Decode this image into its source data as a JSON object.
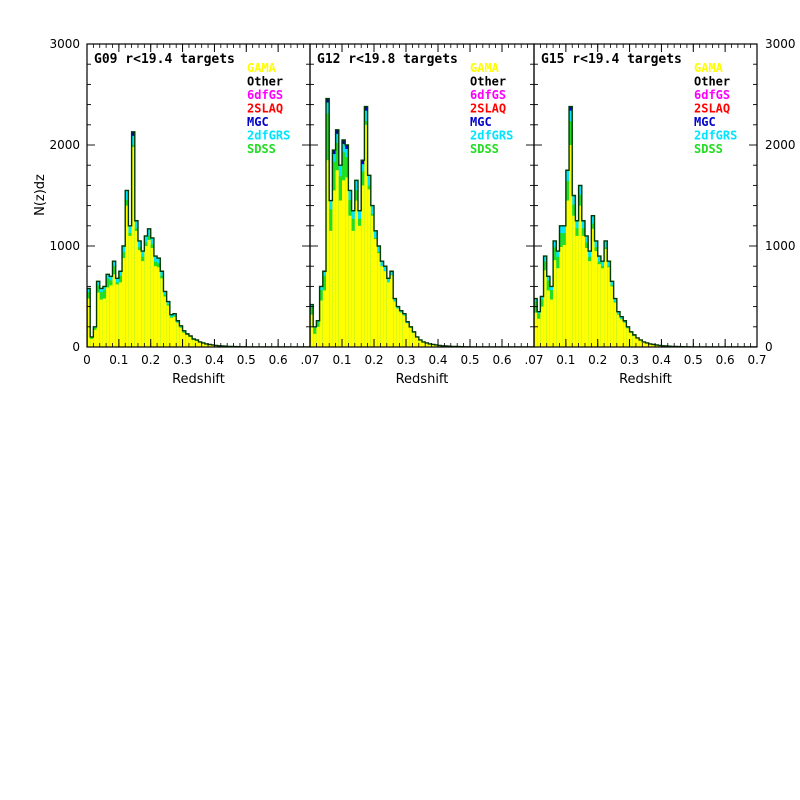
{
  "chart_data": {
    "type": "bar",
    "ylabel": "N(z)dz",
    "xlabel": "Redshift",
    "ylim": [
      0,
      3000
    ],
    "xlim": [
      0,
      0.7
    ],
    "yticks": [
      "0",
      "1000",
      "2000",
      "3000"
    ],
    "xticks": [
      [
        "0",
        "0.1",
        "0.2",
        "0.3",
        "0.4",
        "0.5",
        "0.6"
      ],
      [
        ".07",
        "0.1",
        "0.2",
        "0.3",
        "0.4",
        "0.5",
        "0.6"
      ],
      [
        ".07",
        "0.1",
        "0.2",
        "0.3",
        "0.4",
        "0.5",
        "0.6",
        "0.7"
      ]
    ],
    "tick_values": [
      [
        0,
        0.1,
        0.2,
        0.3,
        0.4,
        0.5,
        0.6
      ],
      [
        0.0,
        0.1,
        0.2,
        0.3,
        0.4,
        0.5,
        0.6
      ],
      [
        0.0,
        0.1,
        0.2,
        0.3,
        0.4,
        0.5,
        0.6,
        0.7
      ]
    ],
    "bin_width": 0.01,
    "legend": [
      {
        "name": "GAMA",
        "color": "#ffff00"
      },
      {
        "name": "Other",
        "color": "#000000"
      },
      {
        "name": "6dfGS",
        "color": "#ff00ff"
      },
      {
        "name": "2SLAQ",
        "color": "#ff0000"
      },
      {
        "name": "MGC",
        "color": "#0000cc"
      },
      {
        "name": "2dfGRS",
        "color": "#00e5ff"
      },
      {
        "name": "SDSS",
        "color": "#22dd22"
      }
    ],
    "panels": [
      {
        "title": "G09 r<19.4 targets",
        "total": [
          580,
          100,
          200,
          650,
          580,
          600,
          720,
          700,
          850,
          680,
          750,
          1000,
          1550,
          1200,
          2130,
          1250,
          1050,
          950,
          1100,
          1170,
          1080,
          900,
          880,
          750,
          550,
          450,
          320,
          330,
          260,
          210,
          160,
          130,
          110,
          80,
          70,
          50,
          40,
          30,
          25,
          20,
          15,
          12,
          10,
          8,
          6,
          5,
          4,
          3,
          2,
          2,
          1,
          1,
          1,
          1,
          0,
          0,
          0,
          0,
          0,
          0,
          0,
          0,
          0,
          0,
          0,
          0,
          0,
          0,
          0,
          0
        ],
        "gama": [
          480,
          80,
          170,
          540,
          470,
          480,
          590,
          610,
          720,
          620,
          640,
          880,
          1400,
          1100,
          1980,
          1150,
          960,
          850,
          1000,
          1060,
          980,
          800,
          790,
          680,
          500,
          410,
          290,
          300,
          240,
          190,
          140,
          120,
          100,
          70,
          60,
          45,
          35,
          27,
          22,
          18,
          13,
          10,
          9,
          7,
          5,
          4,
          3,
          2,
          2,
          1,
          1,
          1,
          1,
          1,
          0,
          0,
          0,
          0,
          0,
          0,
          0,
          0,
          0,
          0,
          0,
          0,
          0,
          0,
          0,
          0
        ]
      },
      {
        "title": "G12 r<19.8 targets",
        "total": [
          420,
          200,
          260,
          600,
          750,
          2460,
          1450,
          1950,
          2150,
          1800,
          2050,
          2000,
          1550,
          1350,
          1650,
          1350,
          1850,
          2380,
          1700,
          1400,
          1150,
          1000,
          850,
          800,
          680,
          750,
          480,
          400,
          360,
          330,
          250,
          200,
          150,
          100,
          70,
          50,
          40,
          30,
          25,
          20,
          15,
          12,
          10,
          8,
          6,
          5,
          4,
          3,
          2,
          2,
          1,
          1,
          1,
          1,
          0,
          0,
          0,
          0,
          0,
          0,
          0,
          0,
          0,
          0,
          0,
          0,
          0,
          0,
          0,
          0
        ],
        "gama": [
          320,
          130,
          200,
          460,
          560,
          1850,
          1150,
          1550,
          1750,
          1450,
          1650,
          1680,
          1300,
          1150,
          1450,
          1200,
          1600,
          2200,
          1560,
          1300,
          1070,
          930,
          800,
          750,
          640,
          710,
          450,
          380,
          340,
          310,
          235,
          190,
          140,
          95,
          65,
          47,
          37,
          28,
          23,
          18,
          14,
          11,
          9,
          7,
          5,
          4,
          3,
          2,
          2,
          1,
          1,
          1,
          1,
          0,
          0,
          0,
          0,
          0,
          0,
          0,
          0,
          0,
          0,
          0,
          0,
          0,
          0,
          0,
          0,
          0
        ]
      },
      {
        "title": "G15 r<19.4 targets",
        "total": [
          480,
          350,
          500,
          900,
          700,
          600,
          1050,
          950,
          1200,
          1200,
          1750,
          2380,
          1500,
          1250,
          1600,
          1250,
          1100,
          950,
          1300,
          1050,
          900,
          850,
          1050,
          850,
          650,
          480,
          350,
          300,
          260,
          200,
          150,
          120,
          90,
          70,
          50,
          40,
          30,
          25,
          20,
          15,
          12,
          10,
          8,
          6,
          5,
          4,
          3,
          2,
          2,
          1,
          1,
          1,
          1,
          0,
          0,
          0,
          0,
          0,
          0,
          0,
          0,
          0,
          0,
          0,
          0,
          0,
          0,
          0,
          0,
          0
        ],
        "gama": [
          340,
          280,
          400,
          760,
          560,
          470,
          860,
          780,
          990,
          1010,
          1450,
          2000,
          1300,
          1100,
          1400,
          1100,
          980,
          850,
          1170,
          950,
          820,
          780,
          970,
          790,
          600,
          440,
          320,
          275,
          240,
          185,
          140,
          110,
          85,
          65,
          47,
          37,
          28,
          23,
          18,
          14,
          11,
          9,
          7,
          5,
          4,
          3,
          2,
          2,
          1,
          1,
          1,
          1,
          1,
          0,
          0,
          0,
          0,
          0,
          0,
          0,
          0,
          0,
          0,
          0,
          0,
          0,
          0,
          0,
          0,
          0
        ]
      }
    ]
  }
}
